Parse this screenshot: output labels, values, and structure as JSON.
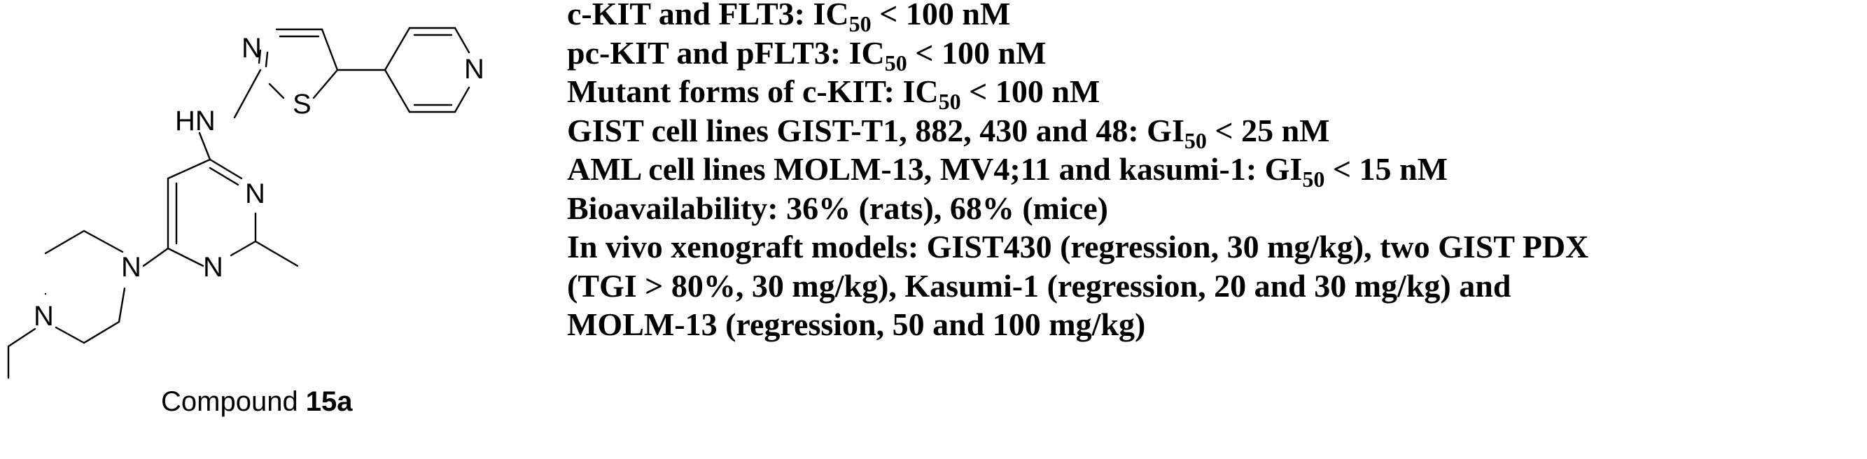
{
  "structure": {
    "atoms": {
      "thiazole_n": "N",
      "thiazole_s": "S",
      "pyridine_n": "N",
      "amine_nh": "HN",
      "pyrimidine_n_top": "N",
      "pyrimidine_n_bottom": "N",
      "piperazine_n_right": "N",
      "piperazine_n_left": "N"
    },
    "caption": {
      "prefix": "Compound ",
      "id": "15a"
    }
  },
  "properties": [
    {
      "pre": "c-KIT and FLT3:  IC",
      "sub": "50",
      "post": " < 100 nM"
    },
    {
      "pre": "pc-KIT and pFLT3: IC",
      "sub": "50",
      "post": " < 100 nM"
    },
    {
      "pre": "Mutant forms of c-KIT: IC",
      "sub": "50",
      "post": " < 100 nM"
    },
    {
      "pre": "GIST cell lines GIST-T1, 882, 430 and 48: GI",
      "sub": "50",
      "post": " < 25 nM"
    },
    {
      "pre": "AML cell lines MOLM-13, MV4;11 and kasumi-1: GI",
      "sub": "50",
      "post": " < 15 nM"
    },
    {
      "pre": "Bioavailability: 36% (rats), 68% (mice)",
      "sub": "",
      "post": ""
    },
    {
      "pre": "In vivo xenograft models: GIST430 (regression, 30 mg/kg), two GIST PDX",
      "sub": "",
      "post": ""
    },
    {
      "pre": "(TGI > 80%, 30 mg/kg), Kasumi-1 (regression, 20 and 30 mg/kg) and",
      "sub": "",
      "post": ""
    },
    {
      "pre": "MOLM-13 (regression, 50 and 100 mg/kg)",
      "sub": "",
      "post": ""
    }
  ]
}
